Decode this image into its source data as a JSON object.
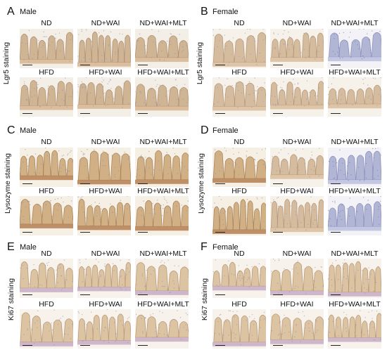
{
  "panels": [
    {
      "letter": "A",
      "sex": "Male",
      "stain": "Lgr5 staining",
      "labels": [
        "ND",
        "ND+WAI",
        "ND+WAI+MLT",
        "HFD",
        "HFD+WAI",
        "HFD+WAI+MLT"
      ]
    },
    {
      "letter": "B",
      "sex": "Female",
      "stain": "Lgr5 staining",
      "labels": [
        "ND",
        "ND+WAI",
        "ND+WAI+MLT",
        "HFD",
        "HFD+WAI",
        "HFD+WAI+MLT"
      ]
    },
    {
      "letter": "C",
      "sex": "Male",
      "stain": "Lysozyme staining",
      "labels": [
        "ND",
        "ND+WAI",
        "ND+WAI+MLT",
        "HFD",
        "HFD+WAI",
        "HFD+WAI+MLT"
      ]
    },
    {
      "letter": "D",
      "sex": "Female",
      "stain": "Lysozyme staining",
      "labels": [
        "ND",
        "ND+WAI",
        "ND+WAI+MLT",
        "HFD",
        "HFD+WAI",
        "HFD+WAI+MLT"
      ]
    },
    {
      "letter": "E",
      "sex": "Male",
      "stain": "Ki67 staining",
      "labels": [
        "ND",
        "ND+WAI",
        "ND+WAI+MLT",
        "HFD",
        "HFD+WAI",
        "HFD+WAI+MLT"
      ]
    },
    {
      "letter": "F",
      "sex": "Female",
      "stain": "Ki67 staining",
      "labels": [
        "ND",
        "ND+WAI",
        "ND+WAI+MLT",
        "HFD",
        "HFD+WAI",
        "HFD+WAI+MLT"
      ]
    }
  ]
}
